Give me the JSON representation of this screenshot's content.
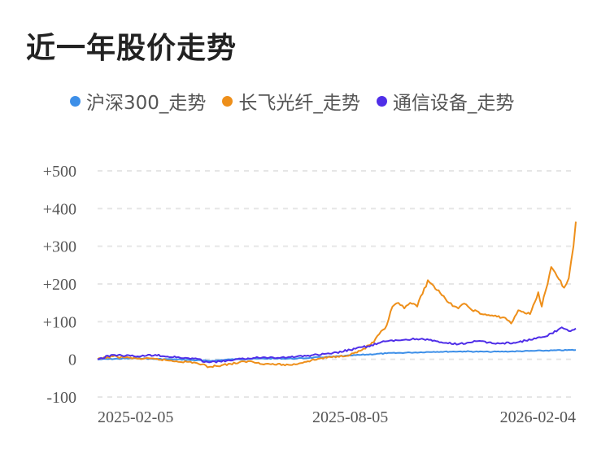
{
  "title": "近一年股价走势",
  "colors": {
    "s1": "#3d8fe8",
    "s2": "#ee8f1a",
    "s3": "#4f2ee8",
    "grid": "#e6e6e6"
  },
  "chart_data": {
    "type": "line",
    "yticks": [
      {
        "value": 500,
        "label": "+500"
      },
      {
        "value": 400,
        "label": "+400"
      },
      {
        "value": 300,
        "label": "+300"
      },
      {
        "value": 200,
        "label": "+200"
      },
      {
        "value": 100,
        "label": "+100"
      },
      {
        "value": 0,
        "label": "0"
      },
      {
        "value": -100,
        "label": "-100"
      }
    ],
    "ylim": [
      -100,
      500
    ],
    "xlim": [
      "2025-01-02",
      "2026-02-13"
    ],
    "xticks": [
      "2025-02-05",
      "2025-08-05",
      "2026-02-04"
    ],
    "grid": true,
    "legend_position": "top",
    "series": [
      {
        "name": "沪深300_走势",
        "color": "#3d8fe8",
        "points": [
          [
            "2025-01-02",
            0
          ],
          [
            "2025-02-05",
            3
          ],
          [
            "2025-02-20",
            1
          ],
          [
            "2025-03-10",
            0
          ],
          [
            "2025-04-07",
            -4
          ],
          [
            "2025-04-25",
            0
          ],
          [
            "2025-05-20",
            2
          ],
          [
            "2025-06-20",
            2
          ],
          [
            "2025-07-20",
            7
          ],
          [
            "2025-08-05",
            10
          ],
          [
            "2025-09-05",
            16
          ],
          [
            "2025-09-25",
            18
          ],
          [
            "2025-10-15",
            20
          ],
          [
            "2025-11-10",
            21
          ],
          [
            "2025-12-01",
            20
          ],
          [
            "2025-12-20",
            21
          ],
          [
            "2026-01-15",
            23
          ],
          [
            "2026-02-13",
            25
          ]
        ]
      },
      {
        "name": "长飞光纤_走势",
        "color": "#ee8f1a",
        "points": [
          [
            "2025-01-02",
            0
          ],
          [
            "2025-01-15",
            8
          ],
          [
            "2025-02-05",
            2
          ],
          [
            "2025-02-20",
            1
          ],
          [
            "2025-03-10",
            -5
          ],
          [
            "2025-03-25",
            -8
          ],
          [
            "2025-04-07",
            -20
          ],
          [
            "2025-04-25",
            -12
          ],
          [
            "2025-05-10",
            -5
          ],
          [
            "2025-05-25",
            -12
          ],
          [
            "2025-06-15",
            -15
          ],
          [
            "2025-06-30",
            -5
          ],
          [
            "2025-07-10",
            2
          ],
          [
            "2025-07-25",
            8
          ],
          [
            "2025-08-05",
            12
          ],
          [
            "2025-08-15",
            25
          ],
          [
            "2025-08-25",
            45
          ],
          [
            "2025-09-05",
            90
          ],
          [
            "2025-09-10",
            140
          ],
          [
            "2025-09-15",
            150
          ],
          [
            "2025-09-20",
            135
          ],
          [
            "2025-09-25",
            150
          ],
          [
            "2025-10-01",
            140
          ],
          [
            "2025-10-10",
            210
          ],
          [
            "2025-10-15",
            195
          ],
          [
            "2025-10-22",
            170
          ],
          [
            "2025-10-28",
            150
          ],
          [
            "2025-11-05",
            135
          ],
          [
            "2025-11-10",
            148
          ],
          [
            "2025-11-15",
            135
          ],
          [
            "2025-11-25",
            120
          ],
          [
            "2025-12-05",
            115
          ],
          [
            "2025-12-15",
            110
          ],
          [
            "2025-12-20",
            95
          ],
          [
            "2025-12-26",
            130
          ],
          [
            "2026-01-05",
            120
          ],
          [
            "2026-01-12",
            178
          ],
          [
            "2026-01-15",
            140
          ],
          [
            "2026-01-20",
            200
          ],
          [
            "2026-01-23",
            245
          ],
          [
            "2026-01-28",
            220
          ],
          [
            "2026-02-03",
            190
          ],
          [
            "2026-02-05",
            200
          ],
          [
            "2026-02-07",
            215
          ],
          [
            "2026-02-09",
            260
          ],
          [
            "2026-02-11",
            300
          ],
          [
            "2026-02-13",
            365
          ]
        ]
      },
      {
        "name": "通信设备_走势",
        "color": "#4f2ee8",
        "points": [
          [
            "2025-01-02",
            0
          ],
          [
            "2025-01-15",
            12
          ],
          [
            "2025-02-05",
            8
          ],
          [
            "2025-02-20",
            12
          ],
          [
            "2025-03-10",
            5
          ],
          [
            "2025-03-25",
            2
          ],
          [
            "2025-04-07",
            -8
          ],
          [
            "2025-04-25",
            -3
          ],
          [
            "2025-05-10",
            3
          ],
          [
            "2025-05-25",
            5
          ],
          [
            "2025-06-15",
            6
          ],
          [
            "2025-06-30",
            10
          ],
          [
            "2025-07-20",
            15
          ],
          [
            "2025-08-05",
            25
          ],
          [
            "2025-08-20",
            35
          ],
          [
            "2025-09-05",
            48
          ],
          [
            "2025-09-20",
            52
          ],
          [
            "2025-10-05",
            55
          ],
          [
            "2025-10-20",
            45
          ],
          [
            "2025-11-05",
            40
          ],
          [
            "2025-11-20",
            48
          ],
          [
            "2025-12-10",
            42
          ],
          [
            "2025-12-25",
            45
          ],
          [
            "2026-01-10",
            55
          ],
          [
            "2026-01-20",
            62
          ],
          [
            "2026-02-01",
            85
          ],
          [
            "2026-02-07",
            75
          ],
          [
            "2026-02-13",
            82
          ]
        ]
      }
    ]
  }
}
